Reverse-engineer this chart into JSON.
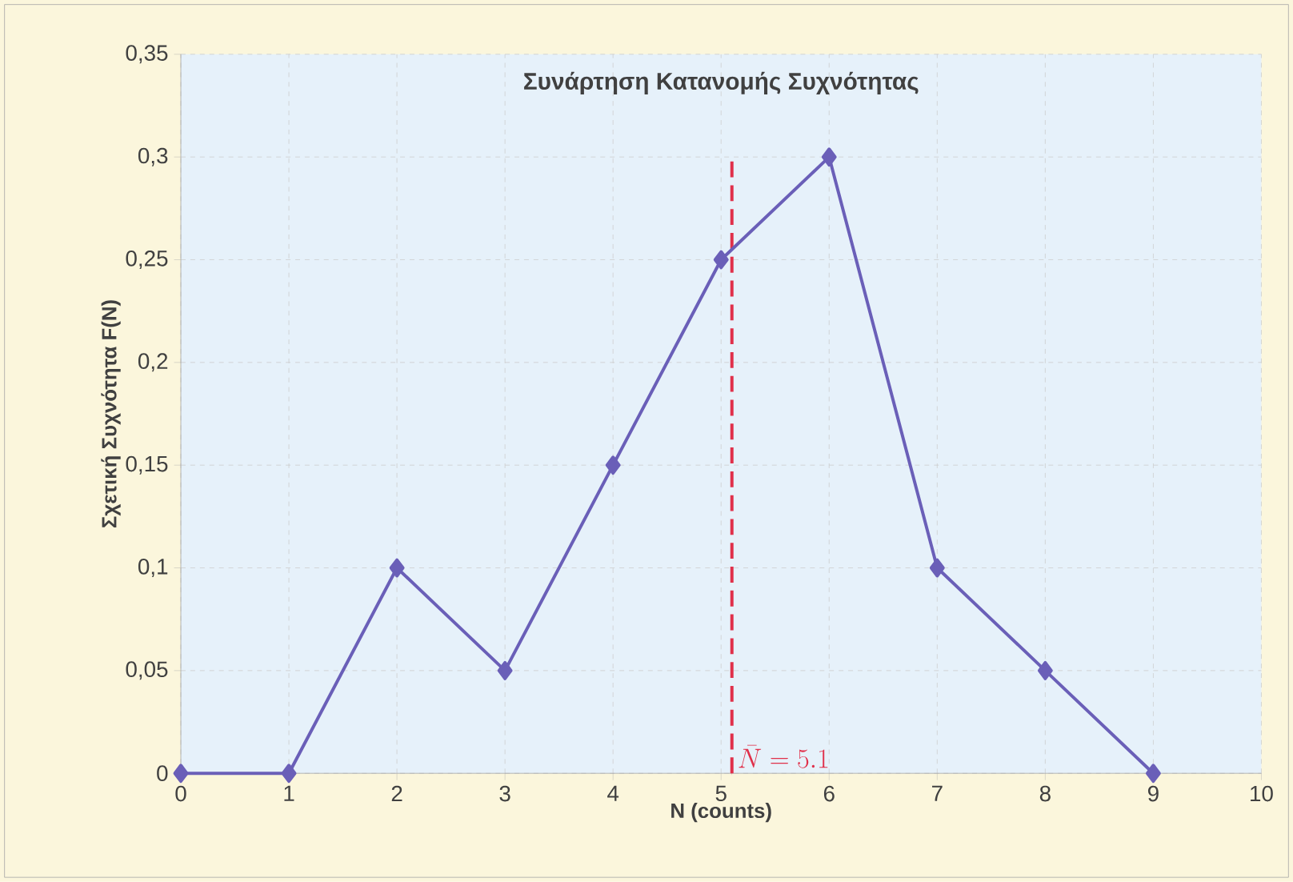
{
  "chart_data": {
    "type": "line",
    "title": "Συνάρτηση Κατανομής Συχνότητας",
    "xlabel": "N (counts)",
    "ylabel": "Σχετική Συχνότητα F(N)",
    "x": [
      0,
      1,
      2,
      3,
      4,
      5,
      6,
      7,
      8,
      9
    ],
    "series": [
      {
        "color": "#6a5fb8",
        "values": [
          0,
          0,
          0.1,
          0.05,
          0.15,
          0.25,
          0.3,
          0.1,
          0.05,
          0
        ]
      }
    ],
    "xlim": [
      0,
      10
    ],
    "xticks": [
      0,
      1,
      2,
      3,
      4,
      5,
      6,
      7,
      8,
      9,
      10
    ],
    "ylim": [
      0,
      0.35
    ],
    "yticks": [
      0,
      {
        "value": 0.05,
        "label": "0,05"
      },
      {
        "value": 0.1,
        "label": "0,1"
      },
      {
        "value": 0.15,
        "label": "0,15"
      },
      {
        "value": 0.2,
        "label": "0,2"
      },
      {
        "value": 0.25,
        "label": "0,25"
      },
      {
        "value": 0.3,
        "label": "0,3"
      },
      {
        "value": 0.35,
        "label": "0,35"
      }
    ],
    "ref_lines": [
      {
        "axis": "x",
        "value": 5.1,
        "label": "\\bar{N} = 5.1",
        "color": "#e0304a",
        "line_style": "dashed"
      }
    ],
    "grid": true,
    "marker": "diamond",
    "line_style": "solid"
  }
}
